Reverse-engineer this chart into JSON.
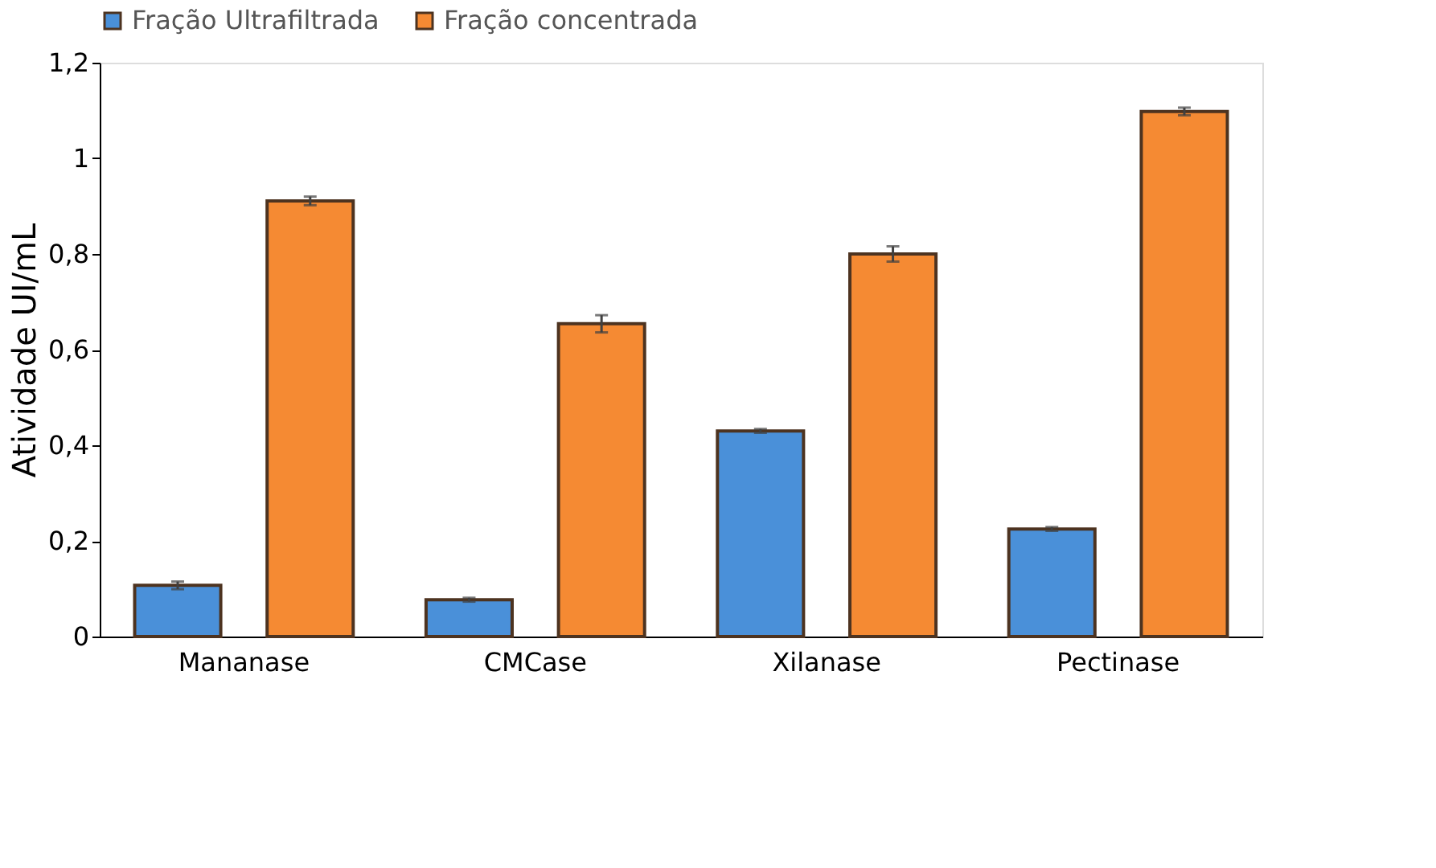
{
  "chart_data": {
    "type": "bar",
    "ylabel": "Atividade UI/mL",
    "categories": [
      "Mananase",
      "CMCase",
      "Xilanase",
      "Pectinase"
    ],
    "series": [
      {
        "name": "Fração Ultrafiltrada",
        "color": "#4a90d9",
        "values": [
          0.107,
          0.077,
          0.43,
          0.225
        ],
        "errors": [
          0.008,
          0.004,
          0.004,
          0.004
        ]
      },
      {
        "name": "Fração concentrada",
        "color": "#f58a33",
        "values": [
          0.911,
          0.654,
          0.8,
          1.098
        ],
        "errors": [
          0.009,
          0.018,
          0.016,
          0.008
        ]
      }
    ],
    "ylim": [
      0,
      1.2
    ],
    "yticks": [
      0,
      {
        "value": 0.2,
        "label": "0,2"
      },
      {
        "value": 0.4,
        "label": "0,4"
      },
      {
        "value": 0.6,
        "label": "0,6"
      },
      {
        "value": 0.8,
        "label": "0,8"
      },
      1,
      {
        "value": 1.2,
        "label": "1,2"
      }
    ],
    "grid": false,
    "legend": "top"
  }
}
